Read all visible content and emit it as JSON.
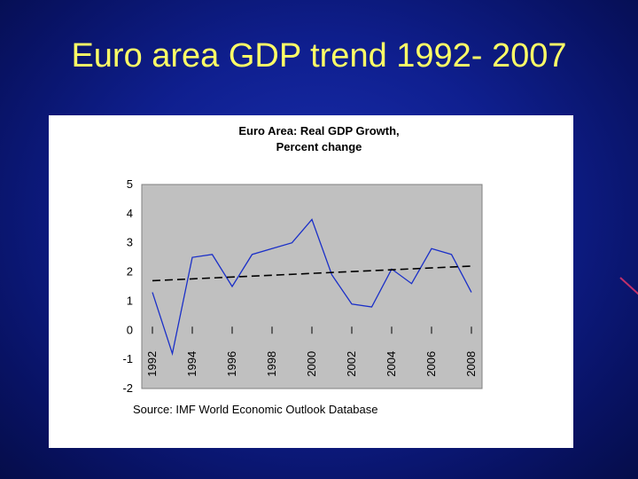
{
  "slide": {
    "title": "Euro area GDP trend 1992- 2007"
  },
  "colors": {
    "background": "#0f1f8f",
    "title": "#ffff66",
    "plot_area": "#c0c0c0",
    "series_line": "#1a2fc8",
    "trend_line": "#000000"
  },
  "chart_data": {
    "type": "line",
    "title": "Euro Area: Real GDP Growth,",
    "subtitle": "Percent change",
    "source": "Source: IMF World Economic Outlook Database",
    "xlabel": "",
    "ylabel": "",
    "xlim": [
      1992,
      2008
    ],
    "ylim": [
      -2,
      5
    ],
    "y_ticks": [
      "5",
      "4",
      "3",
      "2",
      "1",
      "0",
      "-1",
      "-2"
    ],
    "x_ticks": [
      "1992",
      "1994",
      "1996",
      "1998",
      "2000",
      "2002",
      "2004",
      "2006",
      "2008"
    ],
    "grid": false,
    "legend": "none",
    "series": [
      {
        "style": "solid",
        "x": [
          1992,
          1993,
          1994,
          1995,
          1996,
          1997,
          1998,
          1999,
          2000,
          2001,
          2002,
          2003,
          2004,
          2005,
          2006,
          2007,
          2008
        ],
        "values": [
          1.3,
          -0.8,
          2.5,
          2.6,
          1.5,
          2.6,
          2.8,
          3.0,
          3.8,
          1.9,
          0.9,
          0.8,
          2.1,
          1.6,
          2.8,
          2.6,
          1.3
        ]
      },
      {
        "style": "dashed",
        "trend": true,
        "x": [
          1992,
          2008
        ],
        "values": [
          1.7,
          2.2
        ]
      }
    ]
  }
}
